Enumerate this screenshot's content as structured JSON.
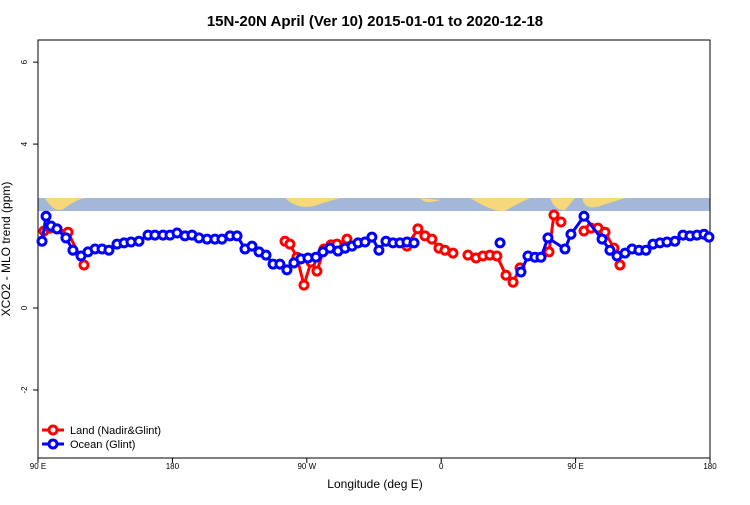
{
  "chart_data": {
    "type": "line",
    "title": "15N-20N April (Ver 10)   2015-01-01 to 2020-12-18",
    "x_label": "Longitude (deg E)",
    "y_label": "XCO2 - MLO trend (ppm)",
    "xlim": [
      90,
      540
    ],
    "xticks": [
      {
        "value": 90,
        "label": "90 E"
      },
      180,
      {
        "value": 270,
        "label": "90 W"
      },
      {
        "value": 360,
        "label": "0"
      },
      {
        "value": 450,
        "label": "90 E"
      },
      180
    ],
    "ylim": [
      -3.66,
      6.54
    ],
    "yticks": [
      -2,
      0,
      4,
      6
    ],
    "legend": "bottomleft",
    "series": [
      {
        "name": "Land (Nadir&Glint)",
        "color": "#ff0000",
        "x": [
          94.0,
          98.0,
          102.7,
          110.1,
          120.8,
          null,
          255.4,
          258.7,
          263.4,
          268.1,
          272.8,
          276.8,
          281.5,
          286.2,
          290.2,
          296.9,
          null,
          337.1,
          344.4,
          349.1,
          353.8,
          358.5,
          362.5,
          367.9,
          null,
          377.9,
          383.3,
          387.9,
          392.6,
          397.3,
          403.4,
          408.1,
          412.8,
          null,
          432.2,
          435.5,
          440.2,
          null,
          455.6,
          460.3,
          465.0,
          469.7,
          475.7,
          479.7
        ],
        "values": [
          1.88,
          1.95,
          1.93,
          1.85,
          1.05,
          null,
          1.63,
          1.56,
          1.24,
          0.56,
          1.12,
          0.9,
          1.44,
          1.54,
          1.56,
          1.68,
          null,
          1.51,
          1.93,
          1.76,
          1.68,
          1.46,
          1.41,
          1.34,
          null,
          1.29,
          1.22,
          1.27,
          1.29,
          1.27,
          0.8,
          0.63,
          0.98,
          null,
          1.37,
          2.27,
          2.1,
          null,
          1.88,
          1.95,
          1.95,
          1.85,
          1.46,
          1.05
        ]
      },
      {
        "name": "Ocean (Glint)",
        "color": "#0000ff",
        "x": [
          92.7,
          95.4,
          98.7,
          102.7,
          108.7,
          113.4,
          118.8,
          123.5,
          128.2,
          132.9,
          137.5,
          142.9,
          147.6,
          152.3,
          157.6,
          163.7,
          168.3,
          173.7,
          178.4,
          183.1,
          188.4,
          193.1,
          197.8,
          203.2,
          208.5,
          213.2,
          218.6,
          223.3,
          228.6,
          233.3,
          238.0,
          242.7,
          247.4,
          252.0,
          256.7,
          261.4,
          266.1,
          270.8,
          276.1,
          280.8,
          285.5,
          290.9,
          295.6,
          300.3,
          304.3,
          309.0,
          313.6,
          318.3,
          323.0,
          327.7,
          332.4,
          337.1,
          341.8,
          null,
          399.4,
          null,
          413.4,
          418.1,
          422.8,
          426.8,
          431.5,
          442.9,
          446.9,
          455.6,
          467.7,
          473.0,
          477.7,
          483.1,
          487.8,
          492.4,
          497.1,
          501.8,
          506.5,
          511.2,
          516.5,
          521.9,
          526.6,
          531.3,
          536.0,
          539.3
        ],
        "values": [
          1.63,
          2.24,
          2.0,
          1.93,
          1.71,
          1.41,
          1.27,
          1.37,
          1.44,
          1.44,
          1.41,
          1.56,
          1.59,
          1.61,
          1.63,
          1.78,
          1.78,
          1.78,
          1.78,
          1.83,
          1.76,
          1.78,
          1.71,
          1.68,
          1.68,
          1.68,
          1.76,
          1.76,
          1.44,
          1.51,
          1.37,
          1.29,
          1.07,
          1.07,
          0.93,
          1.1,
          1.2,
          1.22,
          1.24,
          1.37,
          1.46,
          1.39,
          1.46,
          1.51,
          1.59,
          1.61,
          1.73,
          1.41,
          1.63,
          1.59,
          1.59,
          1.61,
          1.59,
          null,
          1.59,
          null,
          0.88,
          1.27,
          1.24,
          1.24,
          1.71,
          1.44,
          1.8,
          2.24,
          1.68,
          1.41,
          1.27,
          1.34,
          1.44,
          1.41,
          1.41,
          1.56,
          1.59,
          1.61,
          1.63,
          1.78,
          1.76,
          1.78,
          1.8,
          1.73
        ]
      }
    ]
  }
}
